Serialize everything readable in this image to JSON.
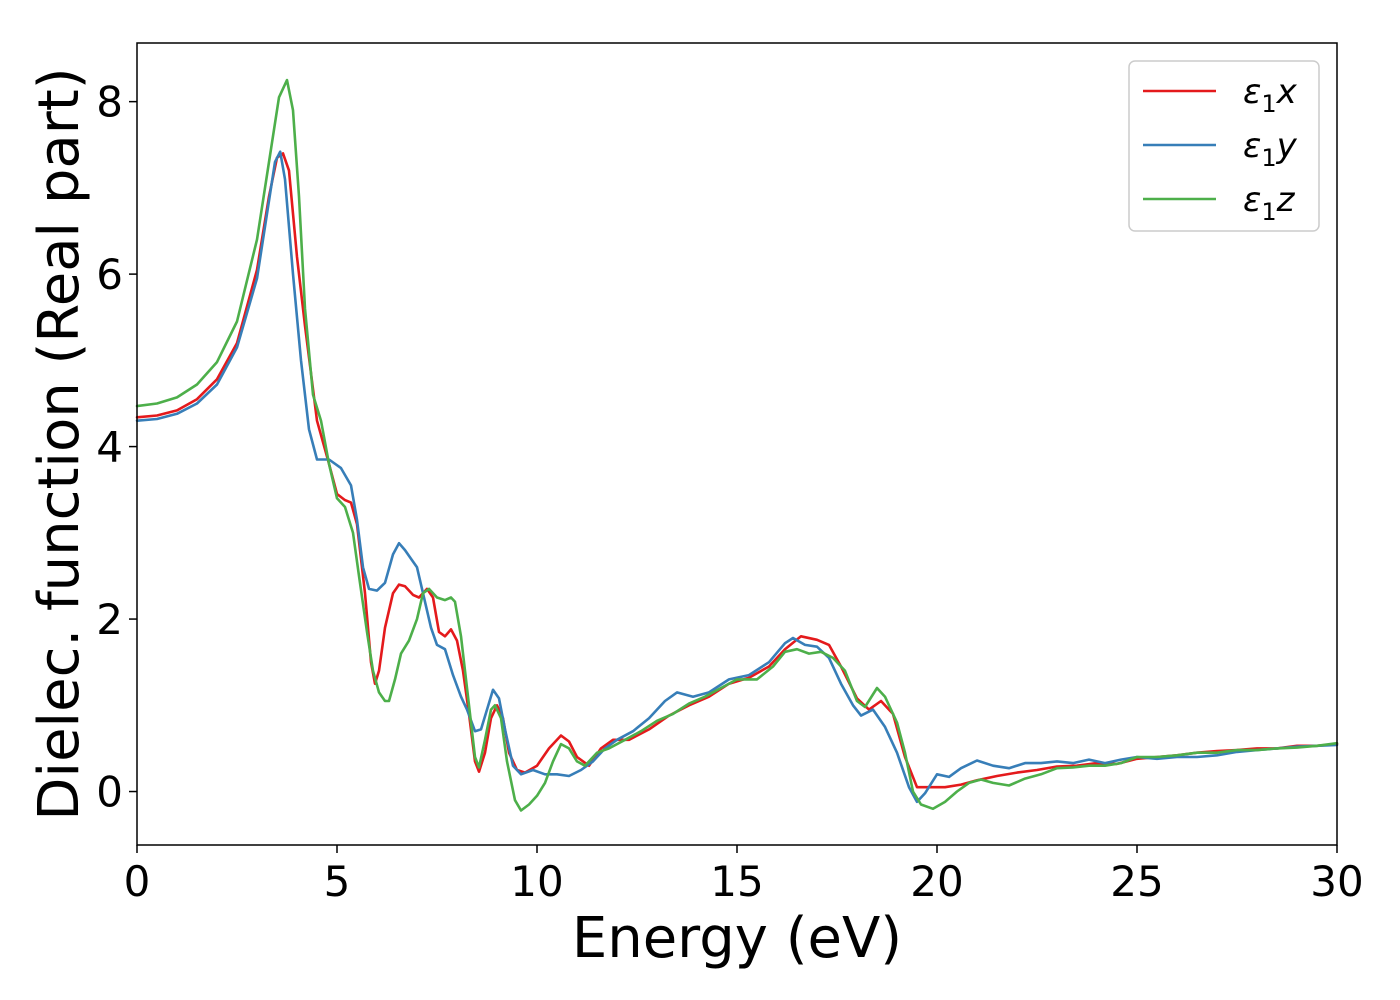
{
  "chart_data": {
    "type": "line",
    "xlabel": "Energy (eV)",
    "ylabel": "Dielec. function (Real part)",
    "xlim": [
      0,
      30
    ],
    "ylim": [
      -0.62,
      8.68
    ],
    "xticks": [
      0,
      5,
      10,
      15,
      20,
      25,
      30
    ],
    "xtick_labels": [
      "0",
      "5",
      "10",
      "15",
      "20",
      "25",
      "30"
    ],
    "yticks": [
      0,
      2,
      4,
      6,
      8
    ],
    "ytick_labels": [
      "0",
      "2",
      "4",
      "6",
      "8"
    ],
    "grid": false,
    "legend_position": "top-right",
    "series": [
      {
        "name": "ε1x",
        "legend": {
          "sym": "ε",
          "sub": "1",
          "var": "x"
        },
        "color": "#e41a1c",
        "points": [
          [
            0,
            4.34
          ],
          [
            0.5,
            4.36
          ],
          [
            1,
            4.42
          ],
          [
            1.5,
            4.55
          ],
          [
            2,
            4.78
          ],
          [
            2.5,
            5.2
          ],
          [
            3,
            6.05
          ],
          [
            3.3,
            6.9
          ],
          [
            3.5,
            7.35
          ],
          [
            3.65,
            7.4
          ],
          [
            3.8,
            7.2
          ],
          [
            4,
            6.2
          ],
          [
            4.2,
            5.4
          ],
          [
            4.5,
            4.3
          ],
          [
            4.8,
            3.8
          ],
          [
            5,
            3.45
          ],
          [
            5.2,
            3.38
          ],
          [
            5.35,
            3.35
          ],
          [
            5.5,
            3.1
          ],
          [
            5.7,
            2.3
          ],
          [
            5.85,
            1.5
          ],
          [
            5.95,
            1.25
          ],
          [
            6.05,
            1.4
          ],
          [
            6.2,
            1.9
          ],
          [
            6.4,
            2.3
          ],
          [
            6.55,
            2.4
          ],
          [
            6.7,
            2.38
          ],
          [
            6.9,
            2.28
          ],
          [
            7.05,
            2.25
          ],
          [
            7.25,
            2.35
          ],
          [
            7.4,
            2.25
          ],
          [
            7.55,
            1.85
          ],
          [
            7.7,
            1.8
          ],
          [
            7.85,
            1.88
          ],
          [
            8,
            1.75
          ],
          [
            8.15,
            1.4
          ],
          [
            8.3,
            0.9
          ],
          [
            8.45,
            0.35
          ],
          [
            8.55,
            0.23
          ],
          [
            8.7,
            0.45
          ],
          [
            8.85,
            0.85
          ],
          [
            9,
            1.0
          ],
          [
            9.15,
            0.85
          ],
          [
            9.3,
            0.45
          ],
          [
            9.5,
            0.25
          ],
          [
            9.7,
            0.22
          ],
          [
            10,
            0.3
          ],
          [
            10.3,
            0.5
          ],
          [
            10.6,
            0.65
          ],
          [
            10.8,
            0.58
          ],
          [
            11,
            0.4
          ],
          [
            11.3,
            0.3
          ],
          [
            11.6,
            0.5
          ],
          [
            11.9,
            0.6
          ],
          [
            12.3,
            0.6
          ],
          [
            12.8,
            0.72
          ],
          [
            13.3,
            0.88
          ],
          [
            13.8,
            1.0
          ],
          [
            14.3,
            1.1
          ],
          [
            14.8,
            1.25
          ],
          [
            15.3,
            1.32
          ],
          [
            15.8,
            1.45
          ],
          [
            16.2,
            1.65
          ],
          [
            16.6,
            1.8
          ],
          [
            17,
            1.76
          ],
          [
            17.3,
            1.7
          ],
          [
            17.6,
            1.45
          ],
          [
            18,
            1.08
          ],
          [
            18.3,
            0.95
          ],
          [
            18.6,
            1.05
          ],
          [
            18.9,
            0.9
          ],
          [
            19.2,
            0.4
          ],
          [
            19.5,
            0.05
          ],
          [
            19.8,
            0.05
          ],
          [
            20.2,
            0.05
          ],
          [
            20.6,
            0.08
          ],
          [
            21,
            0.13
          ],
          [
            21.5,
            0.18
          ],
          [
            22,
            0.22
          ],
          [
            22.5,
            0.25
          ],
          [
            23,
            0.29
          ],
          [
            23.5,
            0.3
          ],
          [
            24,
            0.33
          ],
          [
            24.5,
            0.32
          ],
          [
            25,
            0.38
          ],
          [
            25.5,
            0.4
          ],
          [
            26,
            0.42
          ],
          [
            26.5,
            0.45
          ],
          [
            27,
            0.47
          ],
          [
            27.5,
            0.48
          ],
          [
            28,
            0.5
          ],
          [
            28.5,
            0.5
          ],
          [
            29,
            0.53
          ],
          [
            29.5,
            0.53
          ],
          [
            30,
            0.55
          ]
        ]
      },
      {
        "name": "ε1y",
        "legend": {
          "sym": "ε",
          "sub": "1",
          "var": "y"
        },
        "color": "#377eb8",
        "points": [
          [
            0,
            4.3
          ],
          [
            0.5,
            4.32
          ],
          [
            1,
            4.38
          ],
          [
            1.5,
            4.5
          ],
          [
            2,
            4.72
          ],
          [
            2.5,
            5.15
          ],
          [
            3,
            5.95
          ],
          [
            3.3,
            6.85
          ],
          [
            3.45,
            7.3
          ],
          [
            3.58,
            7.42
          ],
          [
            3.7,
            7.1
          ],
          [
            3.9,
            6.0
          ],
          [
            4.1,
            5.0
          ],
          [
            4.3,
            4.2
          ],
          [
            4.5,
            3.85
          ],
          [
            4.8,
            3.85
          ],
          [
            5.1,
            3.75
          ],
          [
            5.35,
            3.55
          ],
          [
            5.5,
            3.15
          ],
          [
            5.65,
            2.6
          ],
          [
            5.8,
            2.35
          ],
          [
            6,
            2.33
          ],
          [
            6.2,
            2.42
          ],
          [
            6.4,
            2.75
          ],
          [
            6.55,
            2.88
          ],
          [
            6.7,
            2.8
          ],
          [
            6.85,
            2.7
          ],
          [
            7,
            2.6
          ],
          [
            7.15,
            2.3
          ],
          [
            7.35,
            1.9
          ],
          [
            7.5,
            1.7
          ],
          [
            7.7,
            1.65
          ],
          [
            7.9,
            1.35
          ],
          [
            8.1,
            1.1
          ],
          [
            8.25,
            0.95
          ],
          [
            8.45,
            0.7
          ],
          [
            8.6,
            0.72
          ],
          [
            8.75,
            0.95
          ],
          [
            8.9,
            1.18
          ],
          [
            9.05,
            1.08
          ],
          [
            9.2,
            0.72
          ],
          [
            9.4,
            0.3
          ],
          [
            9.6,
            0.2
          ],
          [
            9.9,
            0.25
          ],
          [
            10.2,
            0.2
          ],
          [
            10.5,
            0.2
          ],
          [
            10.8,
            0.18
          ],
          [
            11.1,
            0.25
          ],
          [
            11.4,
            0.35
          ],
          [
            11.7,
            0.5
          ],
          [
            12,
            0.6
          ],
          [
            12.4,
            0.7
          ],
          [
            12.8,
            0.85
          ],
          [
            13.2,
            1.05
          ],
          [
            13.5,
            1.15
          ],
          [
            13.9,
            1.1
          ],
          [
            14.3,
            1.15
          ],
          [
            14.8,
            1.3
          ],
          [
            15.3,
            1.35
          ],
          [
            15.8,
            1.5
          ],
          [
            16.2,
            1.72
          ],
          [
            16.4,
            1.78
          ],
          [
            16.7,
            1.7
          ],
          [
            17,
            1.68
          ],
          [
            17.3,
            1.55
          ],
          [
            17.6,
            1.25
          ],
          [
            17.9,
            1.0
          ],
          [
            18.1,
            0.88
          ],
          [
            18.4,
            0.95
          ],
          [
            18.7,
            0.75
          ],
          [
            19,
            0.45
          ],
          [
            19.3,
            0.05
          ],
          [
            19.5,
            -0.12
          ],
          [
            19.7,
            -0.02
          ],
          [
            20,
            0.2
          ],
          [
            20.3,
            0.17
          ],
          [
            20.6,
            0.27
          ],
          [
            21,
            0.36
          ],
          [
            21.4,
            0.3
          ],
          [
            21.8,
            0.27
          ],
          [
            22.2,
            0.33
          ],
          [
            22.6,
            0.33
          ],
          [
            23,
            0.35
          ],
          [
            23.4,
            0.33
          ],
          [
            23.8,
            0.37
          ],
          [
            24.2,
            0.33
          ],
          [
            24.6,
            0.37
          ],
          [
            25,
            0.4
          ],
          [
            25.5,
            0.38
          ],
          [
            26,
            0.4
          ],
          [
            26.5,
            0.4
          ],
          [
            27,
            0.42
          ],
          [
            27.5,
            0.46
          ],
          [
            28,
            0.48
          ],
          [
            28.5,
            0.5
          ],
          [
            29,
            0.52
          ],
          [
            29.5,
            0.53
          ],
          [
            30,
            0.54
          ]
        ]
      },
      {
        "name": "ε1z",
        "legend": {
          "sym": "ε",
          "sub": "1",
          "var": "z"
        },
        "color": "#4daf4a",
        "points": [
          [
            0,
            4.47
          ],
          [
            0.5,
            4.5
          ],
          [
            1,
            4.57
          ],
          [
            1.5,
            4.72
          ],
          [
            2,
            4.98
          ],
          [
            2.5,
            5.45
          ],
          [
            3,
            6.4
          ],
          [
            3.3,
            7.3
          ],
          [
            3.55,
            8.05
          ],
          [
            3.75,
            8.25
          ],
          [
            3.9,
            7.9
          ],
          [
            4.05,
            6.9
          ],
          [
            4.2,
            5.6
          ],
          [
            4.4,
            4.6
          ],
          [
            4.6,
            4.3
          ],
          [
            4.8,
            3.8
          ],
          [
            5,
            3.4
          ],
          [
            5.2,
            3.3
          ],
          [
            5.4,
            3.0
          ],
          [
            5.55,
            2.5
          ],
          [
            5.75,
            1.85
          ],
          [
            5.9,
            1.4
          ],
          [
            6.05,
            1.15
          ],
          [
            6.2,
            1.05
          ],
          [
            6.3,
            1.05
          ],
          [
            6.45,
            1.3
          ],
          [
            6.6,
            1.6
          ],
          [
            6.8,
            1.75
          ],
          [
            7,
            2.0
          ],
          [
            7.15,
            2.3
          ],
          [
            7.3,
            2.35
          ],
          [
            7.5,
            2.25
          ],
          [
            7.7,
            2.22
          ],
          [
            7.85,
            2.25
          ],
          [
            7.95,
            2.2
          ],
          [
            8.1,
            1.8
          ],
          [
            8.3,
            1.0
          ],
          [
            8.45,
            0.4
          ],
          [
            8.55,
            0.28
          ],
          [
            8.7,
            0.6
          ],
          [
            8.85,
            0.95
          ],
          [
            8.95,
            1.0
          ],
          [
            9.1,
            0.85
          ],
          [
            9.25,
            0.35
          ],
          [
            9.45,
            -0.1
          ],
          [
            9.6,
            -0.22
          ],
          [
            9.8,
            -0.15
          ],
          [
            10,
            -0.05
          ],
          [
            10.2,
            0.1
          ],
          [
            10.4,
            0.35
          ],
          [
            10.6,
            0.55
          ],
          [
            10.8,
            0.5
          ],
          [
            11,
            0.35
          ],
          [
            11.2,
            0.3
          ],
          [
            11.5,
            0.45
          ],
          [
            11.8,
            0.5
          ],
          [
            12.2,
            0.6
          ],
          [
            12.6,
            0.7
          ],
          [
            13,
            0.82
          ],
          [
            13.4,
            0.9
          ],
          [
            13.8,
            1.02
          ],
          [
            14.2,
            1.1
          ],
          [
            14.6,
            1.2
          ],
          [
            15,
            1.3
          ],
          [
            15.5,
            1.3
          ],
          [
            15.9,
            1.45
          ],
          [
            16.2,
            1.62
          ],
          [
            16.5,
            1.65
          ],
          [
            16.8,
            1.6
          ],
          [
            17.1,
            1.62
          ],
          [
            17.4,
            1.55
          ],
          [
            17.7,
            1.4
          ],
          [
            18,
            1.05
          ],
          [
            18.2,
            0.98
          ],
          [
            18.5,
            1.2
          ],
          [
            18.7,
            1.1
          ],
          [
            19,
            0.8
          ],
          [
            19.2,
            0.45
          ],
          [
            19.4,
            0.0
          ],
          [
            19.6,
            -0.15
          ],
          [
            19.9,
            -0.2
          ],
          [
            20.2,
            -0.12
          ],
          [
            20.5,
            0.0
          ],
          [
            20.8,
            0.1
          ],
          [
            21.1,
            0.14
          ],
          [
            21.4,
            0.1
          ],
          [
            21.8,
            0.07
          ],
          [
            22.2,
            0.15
          ],
          [
            22.6,
            0.2
          ],
          [
            23,
            0.27
          ],
          [
            23.4,
            0.28
          ],
          [
            23.8,
            0.3
          ],
          [
            24.2,
            0.3
          ],
          [
            24.6,
            0.33
          ],
          [
            25,
            0.4
          ],
          [
            25.5,
            0.4
          ],
          [
            26,
            0.42
          ],
          [
            26.5,
            0.45
          ],
          [
            27,
            0.45
          ],
          [
            27.5,
            0.48
          ],
          [
            28,
            0.48
          ],
          [
            28.5,
            0.5
          ],
          [
            29,
            0.51
          ],
          [
            29.5,
            0.53
          ],
          [
            30,
            0.56
          ]
        ]
      }
    ]
  }
}
